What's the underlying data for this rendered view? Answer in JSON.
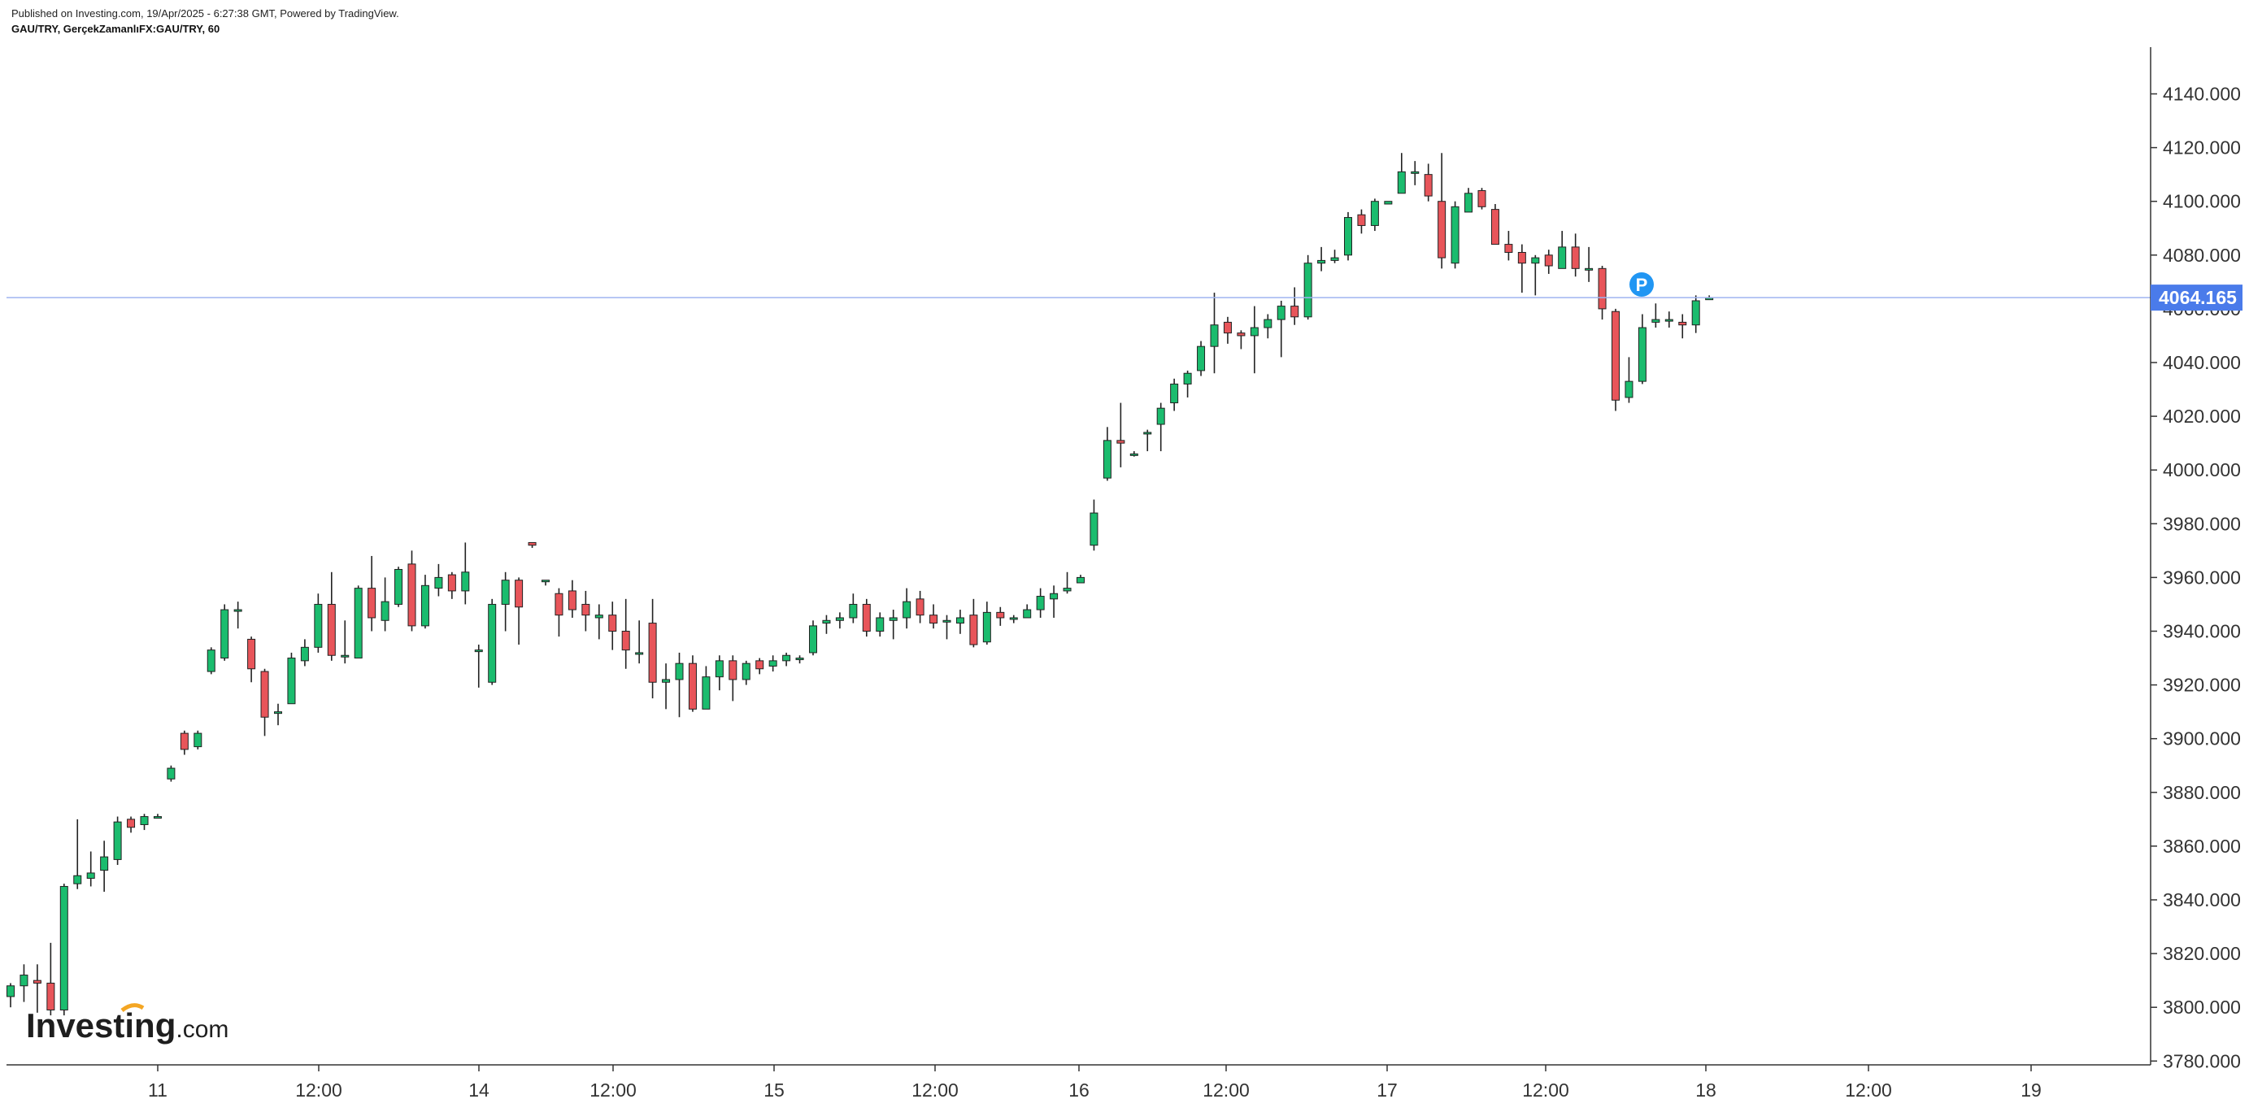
{
  "header": {
    "published": "Published on Investing.com, 19/Apr/2025 - 6:27:38 GMT, Powered by TradingView.",
    "symbol_line": "GAU/TRY, GerçekZamanlıFX:GAU/TRY, 60"
  },
  "logo": {
    "main": "Investing",
    "suffix": ".com"
  },
  "colors": {
    "up": "#1bbc6e",
    "down": "#e8555a",
    "wick": "#222222",
    "price_line": "#9fb4f0",
    "price_tag": "#4a7bea",
    "marker": "#2196f3"
  },
  "marker": {
    "label": "P"
  },
  "chart_data": {
    "type": "candlestick",
    "interval_minutes": 60,
    "ylim": [
      3780,
      4156
    ],
    "yticks": [
      "4140.000",
      "4120.000",
      "4100.000",
      "4080.000",
      "4060.000",
      "4040.000",
      "4020.000",
      "4000.000",
      "3980.000",
      "3960.000",
      "3940.000",
      "3920.000",
      "3900.000",
      "3880.000",
      "3860.000",
      "3840.000",
      "3820.000",
      "3800.000",
      "3780.000"
    ],
    "xticks": [
      "11",
      "12:00",
      "14",
      "12:00",
      "15",
      "12:00",
      "16",
      "12:00",
      "17",
      "12:00",
      "18",
      "12:00",
      "19"
    ],
    "last_price": "4064.165",
    "candles": [
      [
        3804,
        3808,
        3800,
        3809
      ],
      [
        3808,
        3812,
        3802,
        3816
      ],
      [
        3810,
        3809,
        3798,
        3816
      ],
      [
        3809,
        3799,
        3797,
        3824
      ],
      [
        3799,
        3845,
        3797,
        3846
      ],
      [
        3846,
        3849,
        3844,
        3870
      ],
      [
        3848,
        3850,
        3845,
        3858
      ],
      [
        3851,
        3856,
        3843,
        3862
      ],
      [
        3855,
        3869,
        3853,
        3871
      ],
      [
        3870,
        3867,
        3865,
        3871
      ],
      [
        3868,
        3871,
        3866,
        3872
      ],
      [
        3871,
        3871,
        3871,
        3872
      ],
      [
        3885,
        3889,
        3884,
        3890
      ],
      [
        3902,
        3896,
        3894,
        3903
      ],
      [
        3897,
        3902,
        3896,
        3903
      ],
      [
        3925,
        3933,
        3924,
        3934
      ],
      [
        3930,
        3948,
        3929,
        3950
      ],
      [
        3948,
        3948,
        3941,
        3951
      ],
      [
        3937,
        3926,
        3921,
        3938
      ],
      [
        3925,
        3908,
        3901,
        3926
      ],
      [
        3910,
        3910,
        3905,
        3913
      ],
      [
        3913,
        3930,
        3913,
        3932
      ],
      [
        3929,
        3934,
        3927,
        3937
      ],
      [
        3934,
        3950,
        3932,
        3954
      ],
      [
        3950,
        3931,
        3929,
        3962
      ],
      [
        3931,
        3931,
        3928,
        3944
      ],
      [
        3930,
        3956,
        3930,
        3957
      ],
      [
        3956,
        3945,
        3940,
        3968
      ],
      [
        3944,
        3951,
        3940,
        3960
      ],
      [
        3950,
        3963,
        3949,
        3964
      ],
      [
        3965,
        3942,
        3940,
        3970
      ],
      [
        3942,
        3957,
        3941,
        3961
      ],
      [
        3956,
        3960,
        3953,
        3965
      ],
      [
        3961,
        3955,
        3952,
        3962
      ],
      [
        3955,
        3962,
        3950,
        3973
      ],
      [
        3933,
        3933,
        3919,
        3935
      ],
      [
        3921,
        3950,
        3920,
        3952
      ],
      [
        3950,
        3959,
        3940,
        3962
      ],
      [
        3959,
        3949,
        3935,
        3960
      ],
      [
        3973,
        3972,
        3971,
        3973
      ],
      [
        3959,
        3959,
        3957,
        3959
      ],
      [
        3954,
        3946,
        3938,
        3956
      ],
      [
        3955,
        3948,
        3945,
        3959
      ],
      [
        3950,
        3946,
        3940,
        3955
      ],
      [
        3945,
        3946,
        3937,
        3950
      ],
      [
        3946,
        3940,
        3933,
        3951
      ],
      [
        3940,
        3933,
        3926,
        3952
      ],
      [
        3932,
        3932,
        3928,
        3944
      ],
      [
        3943,
        3921,
        3915,
        3952
      ],
      [
        3921,
        3922,
        3911,
        3928
      ],
      [
        3922,
        3928,
        3908,
        3932
      ],
      [
        3928,
        3911,
        3910,
        3931
      ],
      [
        3911,
        3923,
        3911,
        3927
      ],
      [
        3923,
        3929,
        3918,
        3931
      ],
      [
        3929,
        3922,
        3914,
        3931
      ],
      [
        3922,
        3928,
        3920,
        3929
      ],
      [
        3929,
        3926,
        3924,
        3930
      ],
      [
        3927,
        3929,
        3925,
        3931
      ],
      [
        3929,
        3931,
        3927,
        3932
      ],
      [
        3930,
        3930,
        3928,
        3931
      ],
      [
        3932,
        3942,
        3931,
        3944
      ],
      [
        3943,
        3944,
        3939,
        3946
      ],
      [
        3944,
        3945,
        3941,
        3947
      ],
      [
        3945,
        3950,
        3943,
        3954
      ],
      [
        3950,
        3940,
        3938,
        3952
      ],
      [
        3940,
        3945,
        3938,
        3947
      ],
      [
        3944,
        3945,
        3937,
        3948
      ],
      [
        3945,
        3951,
        3941,
        3956
      ],
      [
        3952,
        3946,
        3943,
        3955
      ],
      [
        3946,
        3943,
        3941,
        3950
      ],
      [
        3944,
        3944,
        3937,
        3946
      ],
      [
        3943,
        3945,
        3939,
        3948
      ],
      [
        3946,
        3935,
        3934,
        3952
      ],
      [
        3936,
        3947,
        3935,
        3951
      ],
      [
        3947,
        3945,
        3942,
        3949
      ],
      [
        3945,
        3945,
        3943,
        3946
      ],
      [
        3945,
        3948,
        3945,
        3950
      ],
      [
        3948,
        3953,
        3945,
        3956
      ],
      [
        3952,
        3954,
        3945,
        3957
      ],
      [
        3955,
        3956,
        3954,
        3962
      ],
      [
        3958,
        3960,
        3958,
        3961
      ],
      [
        3972,
        3984,
        3970,
        3989
      ],
      [
        3997,
        4011,
        3996,
        4016
      ],
      [
        4011,
        4010,
        4001,
        4025
      ],
      [
        4006,
        4006,
        4005,
        4007
      ],
      [
        4014,
        4014,
        4007,
        4015
      ],
      [
        4017,
        4023,
        4007,
        4025
      ],
      [
        4025,
        4032,
        4022,
        4034
      ],
      [
        4032,
        4036,
        4027,
        4037
      ],
      [
        4037,
        4046,
        4035,
        4048
      ],
      [
        4046,
        4054,
        4036,
        4066
      ],
      [
        4055,
        4051,
        4047,
        4057
      ],
      [
        4051,
        4050,
        4045,
        4052
      ],
      [
        4050,
        4053,
        4036,
        4061
      ],
      [
        4053,
        4056,
        4049,
        4058
      ],
      [
        4056,
        4061,
        4042,
        4063
      ],
      [
        4061,
        4057,
        4054,
        4068
      ],
      [
        4057,
        4077,
        4056,
        4080
      ],
      [
        4077,
        4078,
        4074,
        4083
      ],
      [
        4078,
        4079,
        4077,
        4082
      ],
      [
        4080,
        4094,
        4078,
        4096
      ],
      [
        4095,
        4091,
        4088,
        4097
      ],
      [
        4091,
        4100,
        4089,
        4101
      ],
      [
        4099,
        4100,
        4099,
        4100
      ],
      [
        4103,
        4111,
        4103,
        4118
      ],
      [
        4111,
        4111,
        4106,
        4115
      ],
      [
        4110,
        4102,
        4100,
        4114
      ],
      [
        4100,
        4079,
        4075,
        4118
      ],
      [
        4077,
        4098,
        4075,
        4100
      ],
      [
        4096,
        4103,
        4096,
        4105
      ],
      [
        4104,
        4098,
        4097,
        4105
      ],
      [
        4097,
        4084,
        4084,
        4099
      ],
      [
        4084,
        4081,
        4078,
        4089
      ],
      [
        4081,
        4077,
        4066,
        4084
      ],
      [
        4077,
        4079,
        4065,
        4080
      ],
      [
        4080,
        4076,
        4073,
        4082
      ],
      [
        4075,
        4083,
        4076,
        4089
      ],
      [
        4083,
        4075,
        4072,
        4088
      ],
      [
        4075,
        4075,
        4070,
        4083
      ],
      [
        4075,
        4060,
        4056,
        4076
      ],
      [
        4059,
        4026,
        4022,
        4060
      ],
      [
        4027,
        4033,
        4025,
        4042
      ],
      [
        4033,
        4053,
        4032,
        4058
      ],
      [
        4055,
        4056,
        4053,
        4062
      ],
      [
        4056,
        4056,
        4053,
        4059
      ],
      [
        4055,
        4054,
        4049,
        4058
      ],
      [
        4054,
        4063,
        4051,
        4065
      ],
      [
        4064,
        4064,
        4064,
        4065
      ]
    ]
  }
}
